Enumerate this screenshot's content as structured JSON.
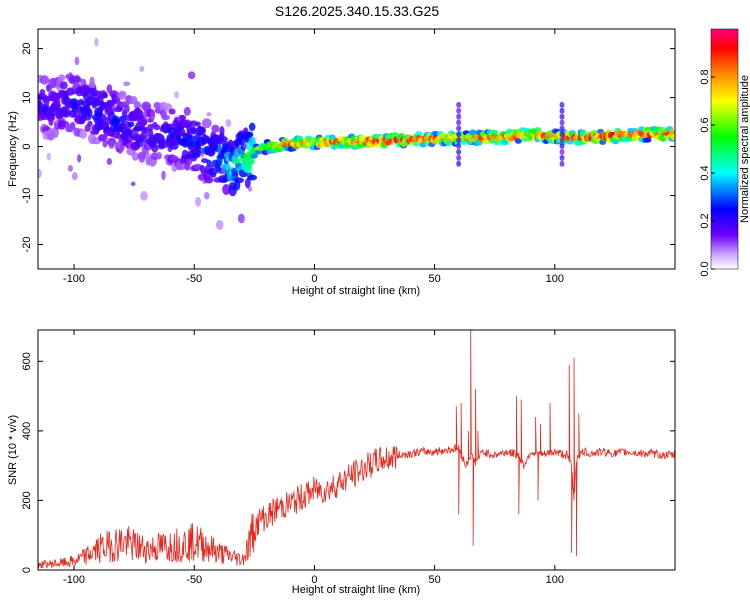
{
  "title": "S126.2025.340.15.33.G25",
  "chart_data": [
    {
      "type": "heatmap",
      "title": "S126.2025.340.15.33.G25",
      "xlabel": "Height of straight line (km)",
      "ylabel": "Frequency (Hz)",
      "xlim": [
        -115,
        150
      ],
      "ylim": [
        -25,
        24
      ],
      "xticks": [
        -100,
        -50,
        0,
        50,
        100
      ],
      "yticks": [
        -20,
        -10,
        0,
        10,
        20
      ],
      "colorbar": {
        "label": "Normalized spectral amplitude",
        "range": [
          0,
          1
        ],
        "ticks": [
          0.0,
          0.2,
          0.4,
          0.6,
          0.8
        ],
        "colormap": [
          "#ffffff",
          "#7000ff",
          "#0000ff",
          "#00ffff",
          "#00ff00",
          "#ffff00",
          "#ff8000",
          "#ff0000",
          "#ff0080"
        ]
      },
      "ridge_frequency_hz": {
        "x": [
          -110,
          -100,
          -90,
          -80,
          -70,
          -60,
          -50,
          -45,
          -40,
          -35,
          -30,
          -25,
          -20,
          -10,
          0,
          10,
          20,
          30,
          40,
          50,
          60,
          70,
          80,
          90,
          100,
          110,
          120,
          130,
          140,
          150
        ],
        "y": [
          8,
          9,
          7,
          5,
          3,
          2,
          1,
          -1,
          -2,
          -4,
          -3,
          -1,
          0,
          0.5,
          0.8,
          1,
          1,
          1.2,
          1.4,
          1.6,
          1.7,
          1.8,
          2,
          2.5,
          2,
          1.8,
          2,
          2.3,
          2.5,
          2.5
        ]
      },
      "ridge_amplitude": {
        "x": [
          -110,
          -90,
          -70,
          -50,
          -40,
          -30,
          -20,
          -10,
          0,
          20,
          40,
          60,
          80,
          100,
          120,
          150
        ],
        "y": [
          0.2,
          0.25,
          0.2,
          0.25,
          0.3,
          0.45,
          0.6,
          0.8,
          0.75,
          0.9,
          0.85,
          0.8,
          0.85,
          0.8,
          0.85,
          0.9
        ]
      }
    },
    {
      "type": "line",
      "xlabel": "Height of straight line (km)",
      "ylabel": "SNR (10 * v/v)",
      "xlim": [
        -115,
        150
      ],
      "ylim": [
        0,
        690
      ],
      "xticks": [
        -100,
        -50,
        0,
        50,
        100
      ],
      "yticks": [
        0,
        200,
        400,
        600
      ],
      "color": "#e8261c",
      "series": [
        {
          "name": "SNR",
          "x": [
            -115,
            -105,
            -100,
            -95,
            -90,
            -85,
            -80,
            -75,
            -70,
            -65,
            -60,
            -55,
            -50,
            -45,
            -40,
            -35,
            -30,
            -28,
            -25,
            -22,
            -20,
            -15,
            -10,
            -5,
            0,
            5,
            10,
            15,
            20,
            25,
            30,
            35,
            40,
            45,
            50,
            55,
            60,
            63,
            65,
            67,
            70,
            75,
            80,
            85,
            87,
            90,
            95,
            100,
            105,
            107,
            108,
            109,
            110,
            112,
            115,
            120,
            125,
            130,
            135,
            140,
            145,
            150
          ],
          "y": [
            15,
            20,
            25,
            40,
            60,
            70,
            80,
            70,
            60,
            65,
            70,
            75,
            80,
            70,
            50,
            40,
            30,
            60,
            120,
            150,
            150,
            180,
            190,
            210,
            230,
            230,
            250,
            270,
            290,
            310,
            320,
            330,
            335,
            340,
            340,
            345,
            350,
            300,
            330,
            310,
            340,
            330,
            340,
            330,
            300,
            340,
            330,
            340,
            330,
            300,
            200,
            320,
            330,
            340,
            335,
            340,
            335,
            340,
            335,
            335,
            330,
            330
          ]
        }
      ],
      "spikes": [
        {
          "x": 59,
          "y": 470
        },
        {
          "x": 60,
          "y": 160
        },
        {
          "x": 61,
          "y": 480
        },
        {
          "x": 64,
          "y": 400
        },
        {
          "x": 65,
          "y": 690
        },
        {
          "x": 66,
          "y": 70
        },
        {
          "x": 67,
          "y": 520
        },
        {
          "x": 68,
          "y": 400
        },
        {
          "x": 84,
          "y": 500
        },
        {
          "x": 85,
          "y": 160
        },
        {
          "x": 86,
          "y": 490
        },
        {
          "x": 92,
          "y": 440
        },
        {
          "x": 93,
          "y": 200
        },
        {
          "x": 94,
          "y": 420
        },
        {
          "x": 98,
          "y": 480
        },
        {
          "x": 106,
          "y": 590
        },
        {
          "x": 107,
          "y": 50
        },
        {
          "x": 108,
          "y": 610
        },
        {
          "x": 109,
          "y": 40
        },
        {
          "x": 110,
          "y": 450
        }
      ]
    }
  ]
}
